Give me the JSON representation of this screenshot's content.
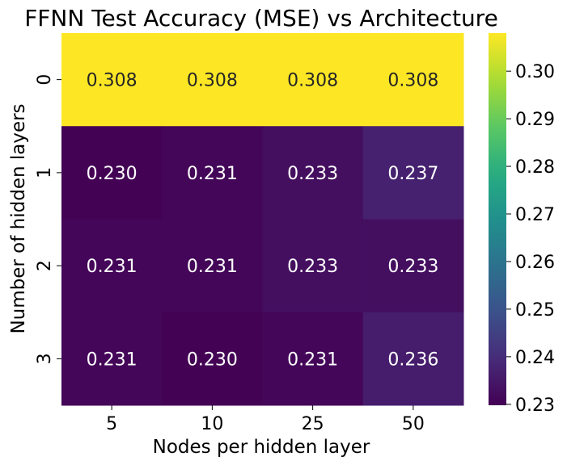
{
  "chart_data": {
    "type": "heatmap",
    "title": "FFNN Test Accuracy (MSE) vs Architecture",
    "xlabel": "Nodes per hidden layer",
    "ylabel": "Number of hidden layers",
    "x_categories": [
      "5",
      "10",
      "25",
      "50"
    ],
    "y_categories": [
      "0",
      "1",
      "2",
      "3"
    ],
    "values": [
      [
        0.308,
        0.308,
        0.308,
        0.308
      ],
      [
        0.23,
        0.231,
        0.233,
        0.237
      ],
      [
        0.231,
        0.231,
        0.233,
        0.233
      ],
      [
        0.231,
        0.23,
        0.231,
        0.236
      ]
    ],
    "value_labels": [
      [
        "0.308",
        "0.308",
        "0.308",
        "0.308"
      ],
      [
        "0.230",
        "0.231",
        "0.233",
        "0.237"
      ],
      [
        "0.231",
        "0.231",
        "0.233",
        "0.233"
      ],
      [
        "0.231",
        "0.230",
        "0.231",
        "0.236"
      ]
    ],
    "colormap": "viridis",
    "color_range": [
      0.2298,
      0.308
    ],
    "colorbar_ticks": [
      "0.23",
      "0.24",
      "0.25",
      "0.26",
      "0.27",
      "0.28",
      "0.29",
      "0.30"
    ],
    "colorbar_tick_values": [
      0.23,
      0.24,
      0.25,
      0.26,
      0.27,
      0.28,
      0.29,
      0.3
    ],
    "annotation_colors": {
      "dark": "#262626",
      "light": "#ffffff"
    }
  }
}
